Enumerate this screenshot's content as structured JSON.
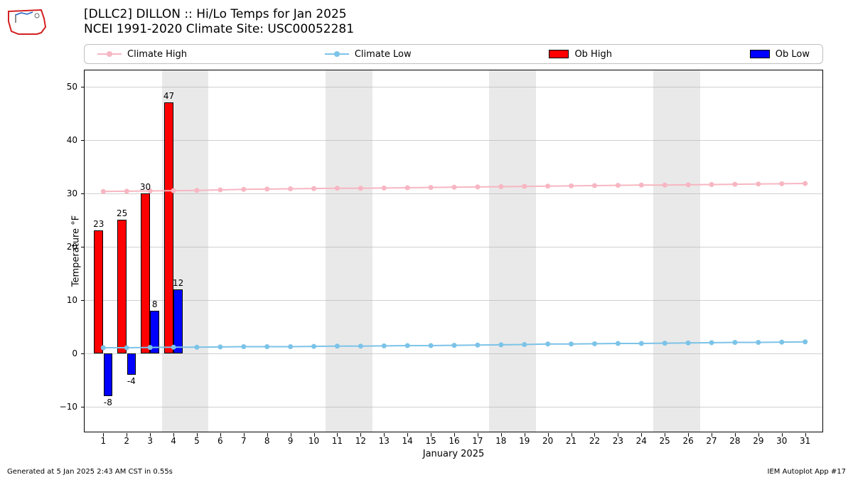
{
  "title": {
    "line1": "[DLLC2] DILLON :: Hi/Lo Temps for Jan 2025",
    "line2": "NCEI 1991-2020 Climate Site: USC00052281"
  },
  "legend": {
    "climate_high": "Climate High",
    "climate_low": "Climate Low",
    "ob_high": "Ob High",
    "ob_low": "Ob Low"
  },
  "axes": {
    "ylabel": "Temperature °F",
    "xlabel": "January 2025",
    "ylim": [
      -15,
      53
    ],
    "yticks": [
      -10,
      0,
      10,
      20,
      30,
      40,
      50
    ],
    "xticks": [
      1,
      2,
      3,
      4,
      5,
      6,
      7,
      8,
      9,
      10,
      11,
      12,
      13,
      14,
      15,
      16,
      17,
      18,
      19,
      20,
      21,
      22,
      23,
      24,
      25,
      26,
      27,
      28,
      29,
      30,
      31
    ],
    "xlim": [
      0.2,
      31.8
    ]
  },
  "weekend_bands": [
    [
      3.5,
      5.5
    ],
    [
      10.5,
      12.5
    ],
    [
      17.5,
      19.5
    ],
    [
      24.5,
      26.5
    ]
  ],
  "chart": {
    "type": "bar+line",
    "days": [
      1,
      2,
      3,
      4,
      5,
      6,
      7,
      8,
      9,
      10,
      11,
      12,
      13,
      14,
      15,
      16,
      17,
      18,
      19,
      20,
      21,
      22,
      23,
      24,
      25,
      26,
      27,
      28,
      29,
      30,
      31
    ],
    "ob_high": {
      "values": [
        23,
        25,
        30,
        47
      ],
      "labels": [
        "23",
        "25",
        "30",
        "47"
      ],
      "color": "#ff0000",
      "bar_width": 0.38
    },
    "ob_low": {
      "values": [
        -8,
        -4,
        8,
        12
      ],
      "labels": [
        "-8",
        "-4",
        "8",
        "12"
      ],
      "color": "#0000ff",
      "bar_width": 0.38
    },
    "climate_high": {
      "color": "#f7b6c2",
      "marker_color": "#f7b6c2",
      "values": [
        30.3,
        30.35,
        30.4,
        30.45,
        30.5,
        30.6,
        30.7,
        30.75,
        30.8,
        30.85,
        30.9,
        30.9,
        30.95,
        31.0,
        31.05,
        31.1,
        31.15,
        31.2,
        31.25,
        31.3,
        31.35,
        31.4,
        31.45,
        31.5,
        31.5,
        31.55,
        31.6,
        31.65,
        31.7,
        31.75,
        31.8
      ]
    },
    "climate_low": {
      "color": "#7cc3e8",
      "marker_color": "#7cc3e8",
      "values": [
        1.0,
        1.0,
        1.05,
        1.1,
        1.1,
        1.15,
        1.2,
        1.2,
        1.2,
        1.25,
        1.3,
        1.3,
        1.35,
        1.4,
        1.4,
        1.45,
        1.5,
        1.55,
        1.6,
        1.7,
        1.7,
        1.75,
        1.8,
        1.8,
        1.85,
        1.9,
        1.95,
        2.0,
        2.0,
        2.05,
        2.1
      ]
    },
    "grid_color": "#b0b0b0",
    "background_color": "#ffffff",
    "line_width": 2,
    "marker_radius": 3.5
  },
  "footer": {
    "left": "Generated at 5 Jan 2025 2:43 AM CST in 0.55s",
    "right": "IEM Autoplot App #17"
  },
  "logo": {
    "outline_color": "#d32020",
    "accent_color": "#2060c0"
  }
}
